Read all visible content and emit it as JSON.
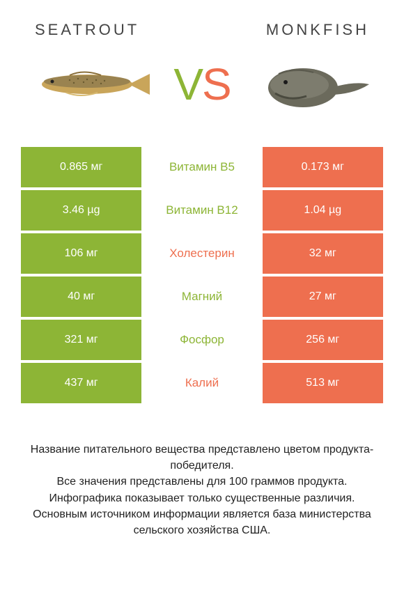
{
  "header": {
    "left_title": "Seatrout",
    "right_title": "Monkfish",
    "vs_label": "VS"
  },
  "colors": {
    "left": "#8db536",
    "right": "#ee6f4f",
    "mid_left_text": "#8db536",
    "mid_right_text": "#ee6f4f",
    "vs_left": "#8db536",
    "vs_right": "#ee6f4f"
  },
  "rows": [
    {
      "left": "0.865 мг",
      "mid": "Витамин B5",
      "right": "0.173 мг",
      "winner": "left"
    },
    {
      "left": "3.46 µg",
      "mid": "Витамин B12",
      "right": "1.04 µg",
      "winner": "left"
    },
    {
      "left": "106 мг",
      "mid": "Холестерин",
      "right": "32 мг",
      "winner": "right"
    },
    {
      "left": "40 мг",
      "mid": "Магний",
      "right": "27 мг",
      "winner": "left"
    },
    {
      "left": "321 мг",
      "mid": "Фосфор",
      "right": "256 мг",
      "winner": "left"
    },
    {
      "left": "437 мг",
      "mid": "Калий",
      "right": "513 мг",
      "winner": "right"
    }
  ],
  "footer": {
    "line1": "Название питательного вещества представлено цветом продукта-победителя.",
    "line2": "Все значения представлены для 100 граммов продукта.",
    "line3": "Инфографика показывает только существенные различия.",
    "line4": "Основным источником информации является база министерства сельского хозяйства США."
  }
}
